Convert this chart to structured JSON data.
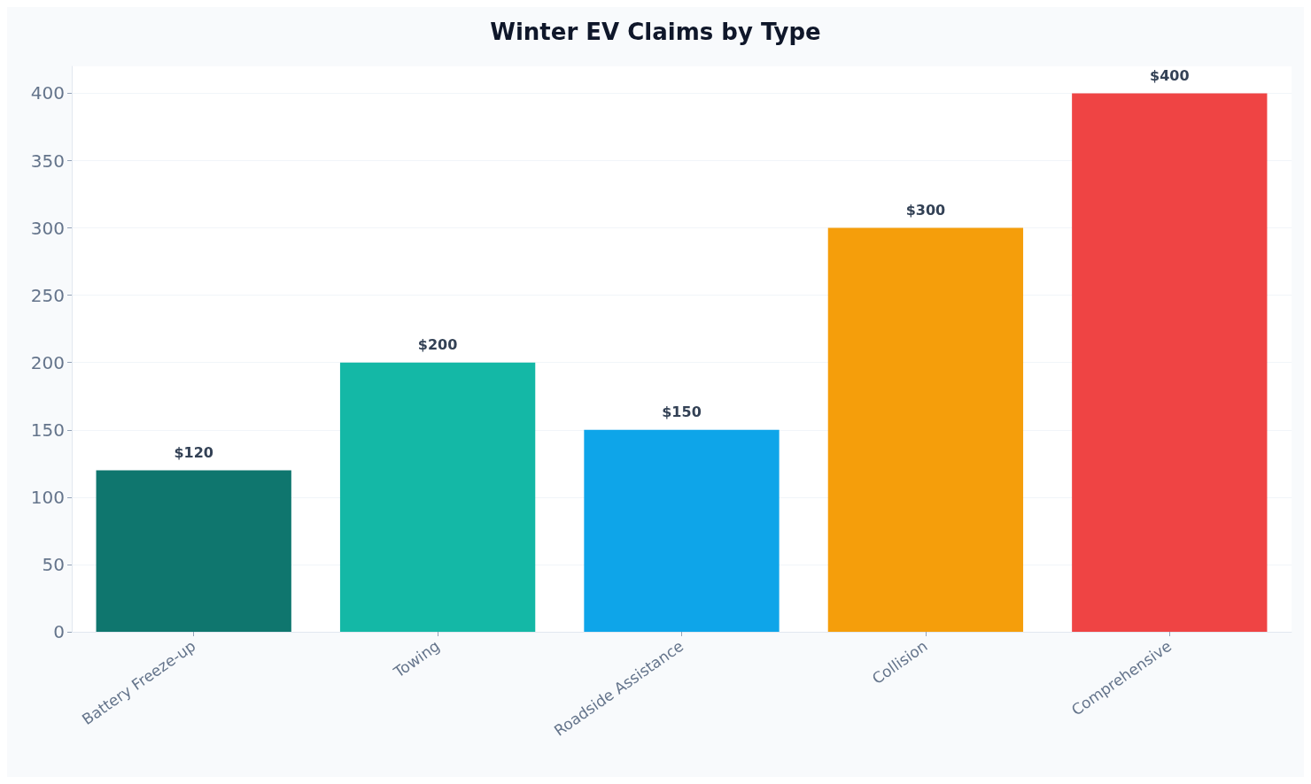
{
  "chart_data": {
    "type": "bar",
    "title": "Winter EV Claims by Type",
    "categories": [
      "Battery Freeze-up",
      "Towing",
      "Roadside Assistance",
      "Collision",
      "Comprehensive"
    ],
    "values": [
      120,
      200,
      150,
      300,
      400
    ],
    "colors": [
      "#0f766e",
      "#14b8a6",
      "#0ea5e9",
      "#f59e0b",
      "#ef4444"
    ],
    "value_labels": [
      "$120",
      "$200",
      "$150",
      "$300",
      "$400"
    ],
    "ylim": [
      0,
      420
    ],
    "yticks": [
      0,
      50,
      100,
      150,
      200,
      250,
      300,
      350,
      400
    ],
    "grid": "y"
  }
}
